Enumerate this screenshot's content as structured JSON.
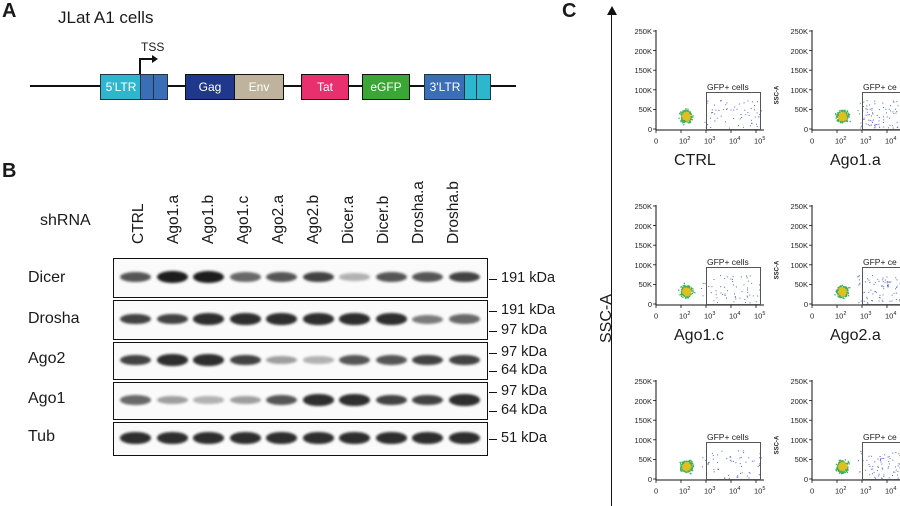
{
  "panels": {
    "a": "A",
    "b": "B",
    "c": "C"
  },
  "panel_a": {
    "title": "JLat  A1 cells",
    "tss_label": "TSS",
    "genes": [
      {
        "label": "5'LTR",
        "color": "#2fb6cf"
      },
      {
        "label": "Gag",
        "color": "#20388c"
      },
      {
        "label": "Env",
        "color": "#bfb39d"
      },
      {
        "label": "Tat",
        "color": "#e9306f"
      },
      {
        "label": "eGFP",
        "color": "#3aa635"
      },
      {
        "label": "3'LTR",
        "color": "#3a6fb8"
      }
    ]
  },
  "panel_b": {
    "shrna_label": "shRNA",
    "lanes": [
      "CTRL",
      "Ago1.a",
      "Ago1.b",
      "Ago1.c",
      "Ago2.a",
      "Ago2.b",
      "Dicer.a",
      "Dicer.b",
      "Drosha.a",
      "Drosha.b"
    ],
    "blots": [
      {
        "name": "Dicer",
        "markers": [
          "191 kDa"
        ],
        "intensity": [
          0.7,
          1.0,
          1.0,
          0.6,
          0.7,
          0.8,
          0.2,
          0.7,
          0.7,
          0.8
        ]
      },
      {
        "name": "Drosha",
        "markers": [
          "191 kDa",
          "97 kDa"
        ],
        "intensity": [
          0.8,
          0.8,
          0.9,
          0.9,
          0.9,
          0.9,
          0.9,
          0.9,
          0.5,
          0.6
        ]
      },
      {
        "name": "Ago2",
        "markers": [
          "97 kDa",
          "64 kDa"
        ],
        "intensity": [
          0.8,
          0.9,
          0.9,
          0.8,
          0.3,
          0.2,
          0.7,
          0.7,
          0.8,
          0.8
        ]
      },
      {
        "name": "Ago1",
        "markers": [
          "97 kDa",
          "64 kDa"
        ],
        "intensity": [
          0.6,
          0.3,
          0.2,
          0.3,
          0.7,
          0.9,
          0.9,
          0.8,
          0.8,
          0.9
        ]
      },
      {
        "name": "Tub",
        "markers": [
          "51 kDa"
        ],
        "intensity": [
          0.9,
          0.9,
          0.9,
          0.9,
          0.9,
          0.9,
          0.9,
          0.9,
          0.9,
          0.9
        ]
      }
    ]
  },
  "panel_c": {
    "y_axis": "SSC-A",
    "y_ticks": [
      "250K",
      "200K",
      "150K",
      "100K",
      "50K",
      "0"
    ],
    "x_ticks": [
      "0",
      "10",
      "10",
      "10",
      "10"
    ],
    "x_exps": [
      "",
      "2",
      "3",
      "4",
      "5"
    ],
    "axis_small": "SSC-A",
    "gate_label": "GFP+ cells",
    "gate_label_short": "GFP+ ce",
    "plots": [
      "CTRL",
      "Ago1.a",
      "Ago1.c",
      "Ago2.a",
      "",
      ""
    ]
  }
}
